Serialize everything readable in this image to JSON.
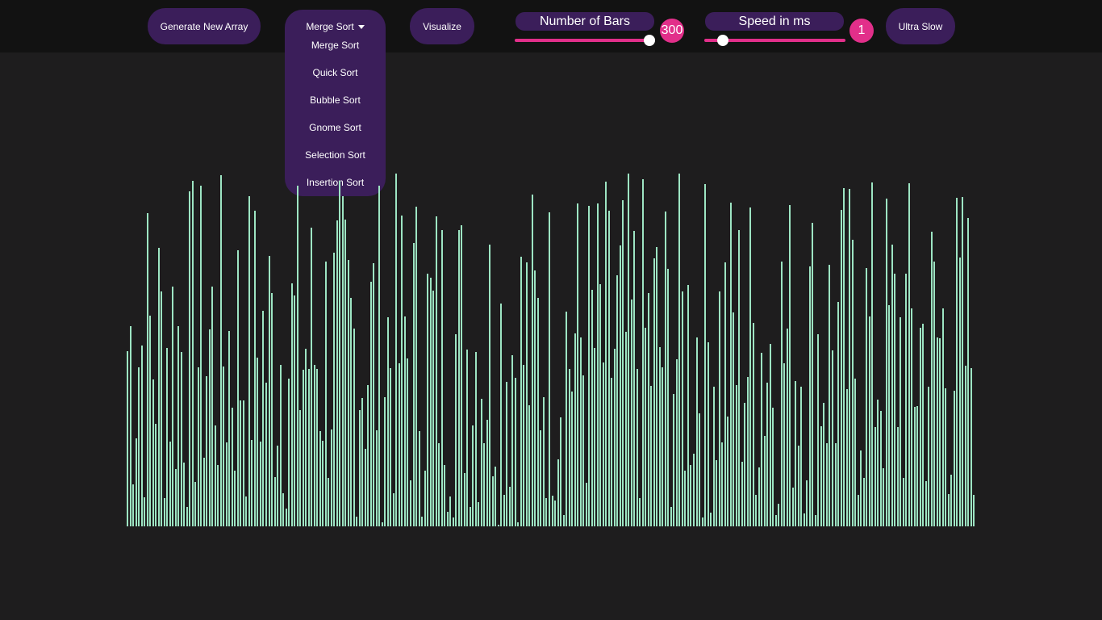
{
  "toolbar": {
    "generate_label": "Generate New Array",
    "visualize_label": "Visualize",
    "speed_preset_label": "Ultra Slow"
  },
  "algorithm_dropdown": {
    "selected": "Merge Sort",
    "options": [
      "Merge Sort",
      "Quick Sort",
      "Bubble Sort",
      "Gnome Sort",
      "Selection Sort",
      "Insertion Sort"
    ]
  },
  "bars_slider": {
    "label": "Number of Bars",
    "value": "300",
    "fraction": 1.0
  },
  "speed_slider": {
    "label": "Speed in ms",
    "value": "1",
    "fraction": 0.1
  },
  "colors": {
    "accent": "#e22f8a",
    "button_bg": "#3b1e5a",
    "bar": "#9de5c3",
    "background": "#1e1d1e"
  },
  "array": {
    "count": 300,
    "max_value": 440,
    "seed": 7
  }
}
